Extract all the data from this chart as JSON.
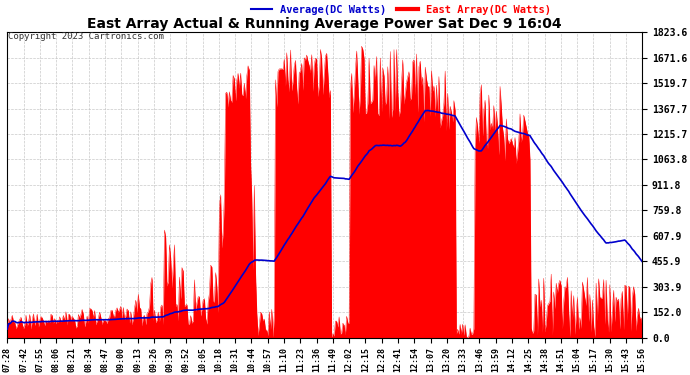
{
  "title": "East Array Actual & Running Average Power Sat Dec 9 16:04",
  "copyright": "Copyright 2023 Cartronics.com",
  "legend_avg": "Average(DC Watts)",
  "legend_east": "East Array(DC Watts)",
  "ylabel_ticks": [
    0.0,
    152.0,
    303.9,
    455.9,
    607.9,
    759.8,
    911.8,
    1063.8,
    1215.7,
    1367.7,
    1519.7,
    1671.6,
    1823.6
  ],
  "ylim": [
    0.0,
    1823.6
  ],
  "bg_color": "#ffffff",
  "grid_color": "#bbbbbb",
  "east_color": "#ff0000",
  "avg_color": "#0000cc",
  "title_color": "#000000",
  "copyright_color": "#000000",
  "legend_avg_color": "#0000cc",
  "legend_east_color": "#ff0000",
  "x_tick_labels": [
    "07:28",
    "07:42",
    "07:55",
    "08:06",
    "08:21",
    "08:34",
    "08:47",
    "09:00",
    "09:13",
    "09:26",
    "09:39",
    "09:52",
    "10:05",
    "10:18",
    "10:31",
    "10:44",
    "10:57",
    "11:10",
    "11:23",
    "11:36",
    "11:49",
    "12:02",
    "12:15",
    "12:28",
    "12:41",
    "12:54",
    "13:07",
    "13:20",
    "13:33",
    "13:46",
    "13:59",
    "14:12",
    "14:25",
    "14:38",
    "14:51",
    "15:04",
    "15:17",
    "15:30",
    "15:43",
    "15:56"
  ]
}
